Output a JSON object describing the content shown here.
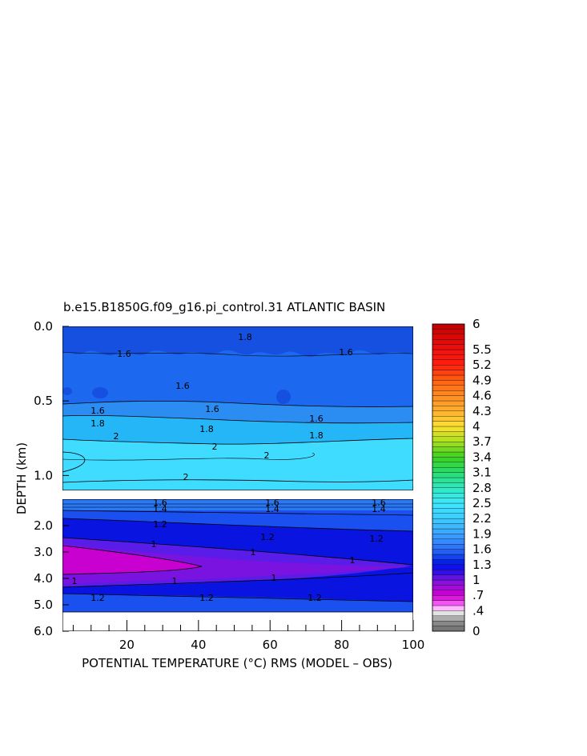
{
  "chart_data": {
    "type": "heatmap",
    "title": "b.e15.B1850G.f09_g16.pi_control.31 ATLANTIC BASIN",
    "xlabel": "POTENTIAL TEMPERATURE (°C) RMS (MODEL – OBS)",
    "ylabel": "DEPTH (km)",
    "x_ticks": [
      "20",
      "40",
      "60",
      "80",
      "100"
    ],
    "xlim": [
      2,
      100
    ],
    "panels": [
      {
        "name": "upper",
        "depth_range_km": [
          0.0,
          1.1
        ],
        "y_ticks": [
          "0.0",
          "0.5",
          "1.0"
        ],
        "contour_labels": [
          "1.6",
          "1.6",
          "1.6",
          "1.6",
          "1.6",
          "1.8",
          "1.8",
          "1.8",
          "1.8",
          "2",
          "2",
          "2",
          "2",
          "1.6"
        ]
      },
      {
        "name": "lower",
        "depth_range_km": [
          1.0,
          6.0
        ],
        "y_ticks": [
          "2.0",
          "3.0",
          "4.0",
          "5.0",
          "6.0"
        ],
        "contour_labels": [
          "1.6",
          "1.6",
          "1.4",
          "1.4",
          "1.4",
          "1.2",
          "1.2",
          "1.2",
          "1",
          "1",
          "1",
          "1",
          "1",
          "1",
          "1.2",
          "1.2",
          "1.2",
          "1.6"
        ]
      }
    ],
    "colorbar": {
      "min": 0,
      "max": 6,
      "tick_labels": [
        "6",
        "5.5",
        "5.2",
        "4.9",
        "4.6",
        "4.3",
        "4",
        "3.7",
        "3.4",
        "3.1",
        "2.8",
        "2.5",
        "2.2",
        "1.9",
        "1.6",
        "1.3",
        "1",
        ".7",
        ".4",
        "0"
      ]
    },
    "colors": {
      "magenta": "#cc00cc",
      "purple": "#7a1ee6",
      "blue_dark": "#0000dd",
      "blue_mid": "#1c5cf0",
      "blue_light": "#3c8cff",
      "cyan": "#3cd4ff",
      "gray": "#808080"
    }
  }
}
